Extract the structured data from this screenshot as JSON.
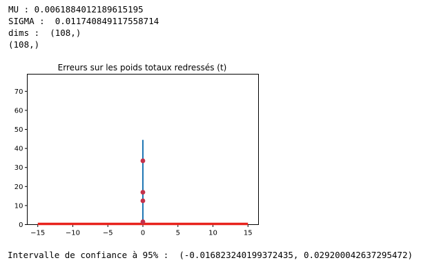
{
  "output": {
    "mu_line": "MU : 0.0061884012189615195",
    "sigma_line": "SIGMA :  0.011740849117558714",
    "dims_line": "dims :  (108,)",
    "shape_line": "(108,)",
    "confidence_line": "Intervalle de confiance à 95% :  (-0.016823240199372435, 0.029200042637295472)"
  },
  "colors": {
    "stem": "#1f77b4",
    "markers": "#c4314b",
    "baseline": "#e8221c"
  },
  "chart_data": {
    "type": "stem",
    "title": "Erreurs sur les poids totaux redressés (t)",
    "xlabel": "",
    "ylabel": "",
    "xlim": [
      -16.5,
      16.5
    ],
    "ylim": [
      0,
      79
    ],
    "xticks": [
      -15,
      -10,
      -5,
      0,
      5,
      10,
      15
    ],
    "xtick_labels": [
      "−15",
      "−10",
      "−5",
      "0",
      "5",
      "10",
      "15"
    ],
    "yticks": [
      0,
      10,
      20,
      30,
      40,
      50,
      60,
      70
    ],
    "ytick_labels": [
      "0",
      "10",
      "20",
      "30",
      "40",
      "50",
      "60",
      "70"
    ],
    "grid": false,
    "stem_line": {
      "x": 0,
      "y_top": 44.5
    },
    "points": [
      {
        "x": 0,
        "y": 33.5
      },
      {
        "x": 0,
        "y": 17
      },
      {
        "x": 0,
        "y": 12.5
      },
      {
        "x": 0,
        "y": 1.5
      }
    ],
    "baseline": {
      "y": 0,
      "x_range": [
        -15,
        15
      ]
    }
  }
}
